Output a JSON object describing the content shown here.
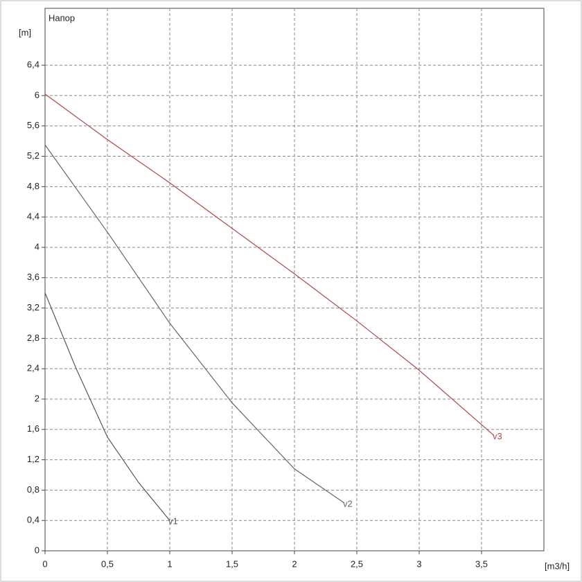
{
  "chart_data": {
    "type": "line",
    "title": "Напор",
    "y_label": "[m]",
    "x_label": "[m3/h]",
    "xlim": [
      0,
      4
    ],
    "ylim": [
      0,
      7.15
    ],
    "xticks": [
      0,
      {
        "value": 0.5,
        "label": "0,5"
      },
      1,
      {
        "value": 1.5,
        "label": "1,5"
      },
      2,
      {
        "value": 2.5,
        "label": "2,5"
      },
      3,
      {
        "value": 3.5,
        "label": "3,5"
      }
    ],
    "yticks": [
      0,
      {
        "value": 0.4,
        "label": "0,4"
      },
      {
        "value": 0.8,
        "label": "0,8"
      },
      {
        "value": 1.2,
        "label": "1,2"
      },
      {
        "value": 1.6,
        "label": "1,6"
      },
      2,
      {
        "value": 2.4,
        "label": "2,4"
      },
      {
        "value": 2.8,
        "label": "2,8"
      },
      {
        "value": 3.2,
        "label": "3,2"
      },
      {
        "value": 3.6,
        "label": "3,6"
      },
      4,
      {
        "value": 4.4,
        "label": "4,4"
      },
      {
        "value": 4.8,
        "label": "4,8"
      },
      {
        "value": 5.2,
        "label": "5,2"
      },
      {
        "value": 5.6,
        "label": "5,6"
      },
      6,
      {
        "value": 6.4,
        "label": "6,4"
      }
    ],
    "grid": true,
    "series": [
      {
        "name": "v1",
        "color": "#555555",
        "x": [
          0,
          0.25,
          0.5,
          0.75,
          1
        ],
        "values": [
          3.4,
          2.4,
          1.5,
          0.9,
          0.4
        ]
      },
      {
        "name": "v2",
        "color": "#666666",
        "x": [
          0,
          0.5,
          1,
          1.5,
          2,
          2.4
        ],
        "values": [
          5.35,
          4.2,
          3.0,
          1.95,
          1.08,
          0.63
        ]
      },
      {
        "name": "v3",
        "color": "#b04848",
        "x": [
          0,
          0.5,
          1,
          1.5,
          2,
          2.5,
          3,
          3.6
        ],
        "values": [
          6.02,
          5.42,
          4.85,
          4.25,
          3.65,
          3.03,
          2.38,
          1.52
        ]
      }
    ]
  }
}
